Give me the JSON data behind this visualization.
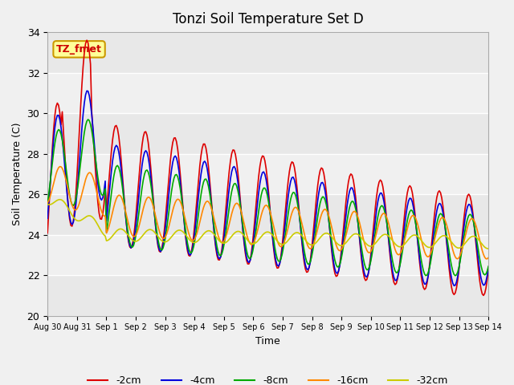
{
  "title": "Tonzi Soil Temperature Set D",
  "xlabel": "Time",
  "ylabel": "Soil Temperature (C)",
  "ylim": [
    20,
    34
  ],
  "yticks": [
    20,
    22,
    24,
    26,
    28,
    30,
    32,
    34
  ],
  "annotation": "TZ_fmet",
  "annotation_color": "#cc0000",
  "annotation_bg": "#ffff99",
  "annotation_border": "#cc9900",
  "colors": {
    "-2cm": "#dd0000",
    "-4cm": "#0000dd",
    "-8cm": "#00aa00",
    "-16cm": "#ff8800",
    "-32cm": "#cccc00"
  },
  "legend_order": [
    "-2cm",
    "-4cm",
    "-8cm",
    "-16cm",
    "-32cm"
  ],
  "bg_color": "#e8e8e8",
  "plot_bg": "#f0f0f0",
  "grid_color": "#ffffff",
  "n_points": 337
}
